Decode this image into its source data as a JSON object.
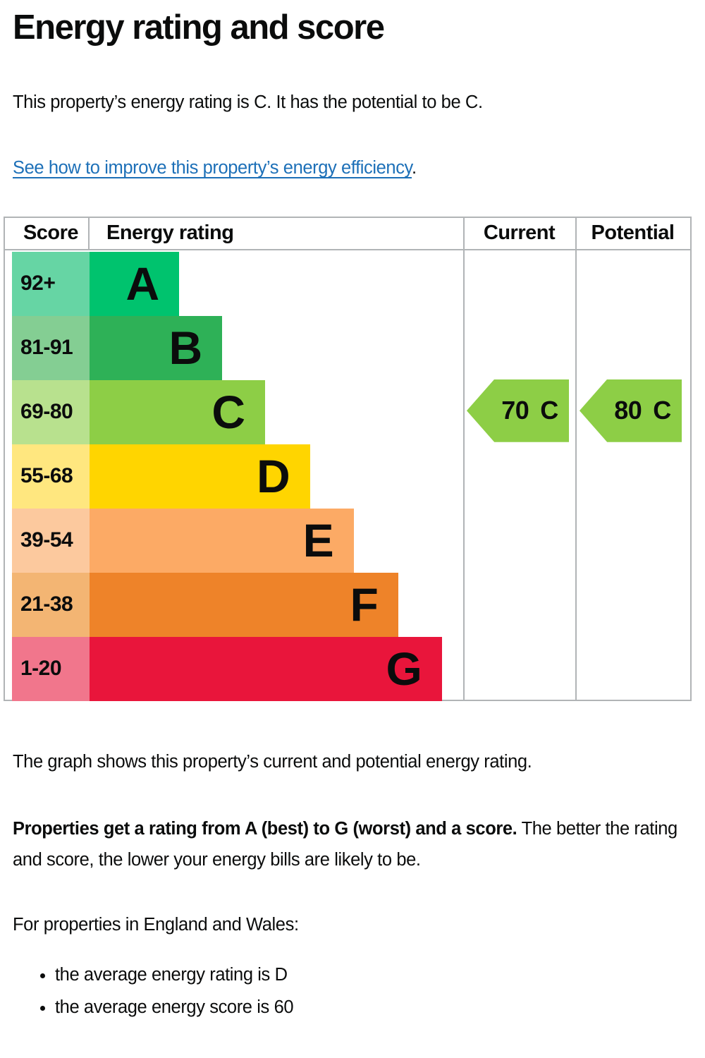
{
  "page": {
    "title": "Energy rating and score",
    "intro": "This property’s energy rating is C. It has the potential to be C.",
    "link_text": "See how to improve this property’s energy efficiency",
    "link_suffix": ".",
    "caption": "The graph shows this property’s current and potential energy rating.",
    "explain_bold": "Properties get a rating from A (best) to G (worst) and a score.",
    "explain_rest": " The better the rating and score, the lower your energy bills are likely to be.",
    "regions_heading": "For properties in England and Wales:",
    "bullets": [
      "the average energy rating is D",
      "the average energy score is 60"
    ]
  },
  "colors": {
    "link": "#1d70b8",
    "table_border": "#b1b4b6",
    "text": "#0b0c0c"
  },
  "chart_data": {
    "type": "table",
    "title": "EPC energy rating graph",
    "columns": [
      "Score",
      "Energy rating",
      "Current",
      "Potential"
    ],
    "bands": [
      {
        "score_range": "92+",
        "letter": "A",
        "color": "#00c36e",
        "tint": "#66d5a4",
        "bar_frac": 0.24
      },
      {
        "score_range": "81-91",
        "letter": "B",
        "color": "#2eb157",
        "tint": "#84ce93",
        "bar_frac": 0.355
      },
      {
        "score_range": "69-80",
        "letter": "C",
        "color": "#8dce46",
        "tint": "#b8e18e",
        "bar_frac": 0.47
      },
      {
        "score_range": "55-68",
        "letter": "D",
        "color": "#ffd500",
        "tint": "#ffe77f",
        "bar_frac": 0.59
      },
      {
        "score_range": "39-54",
        "letter": "E",
        "color": "#fcaa65",
        "tint": "#fcc99e",
        "bar_frac": 0.707
      },
      {
        "score_range": "21-38",
        "letter": "F",
        "color": "#ee8329",
        "tint": "#f3b573",
        "bar_frac": 0.826
      },
      {
        "score_range": "1-20",
        "letter": "G",
        "color": "#e9153b",
        "tint": "#f1768c",
        "bar_frac": 0.943
      }
    ],
    "current": {
      "value": "70",
      "letter": "C",
      "band_index": 2,
      "color": "#8dce46"
    },
    "potential": {
      "value": "80",
      "letter": "C",
      "band_index": 2,
      "color": "#8dce46"
    }
  }
}
